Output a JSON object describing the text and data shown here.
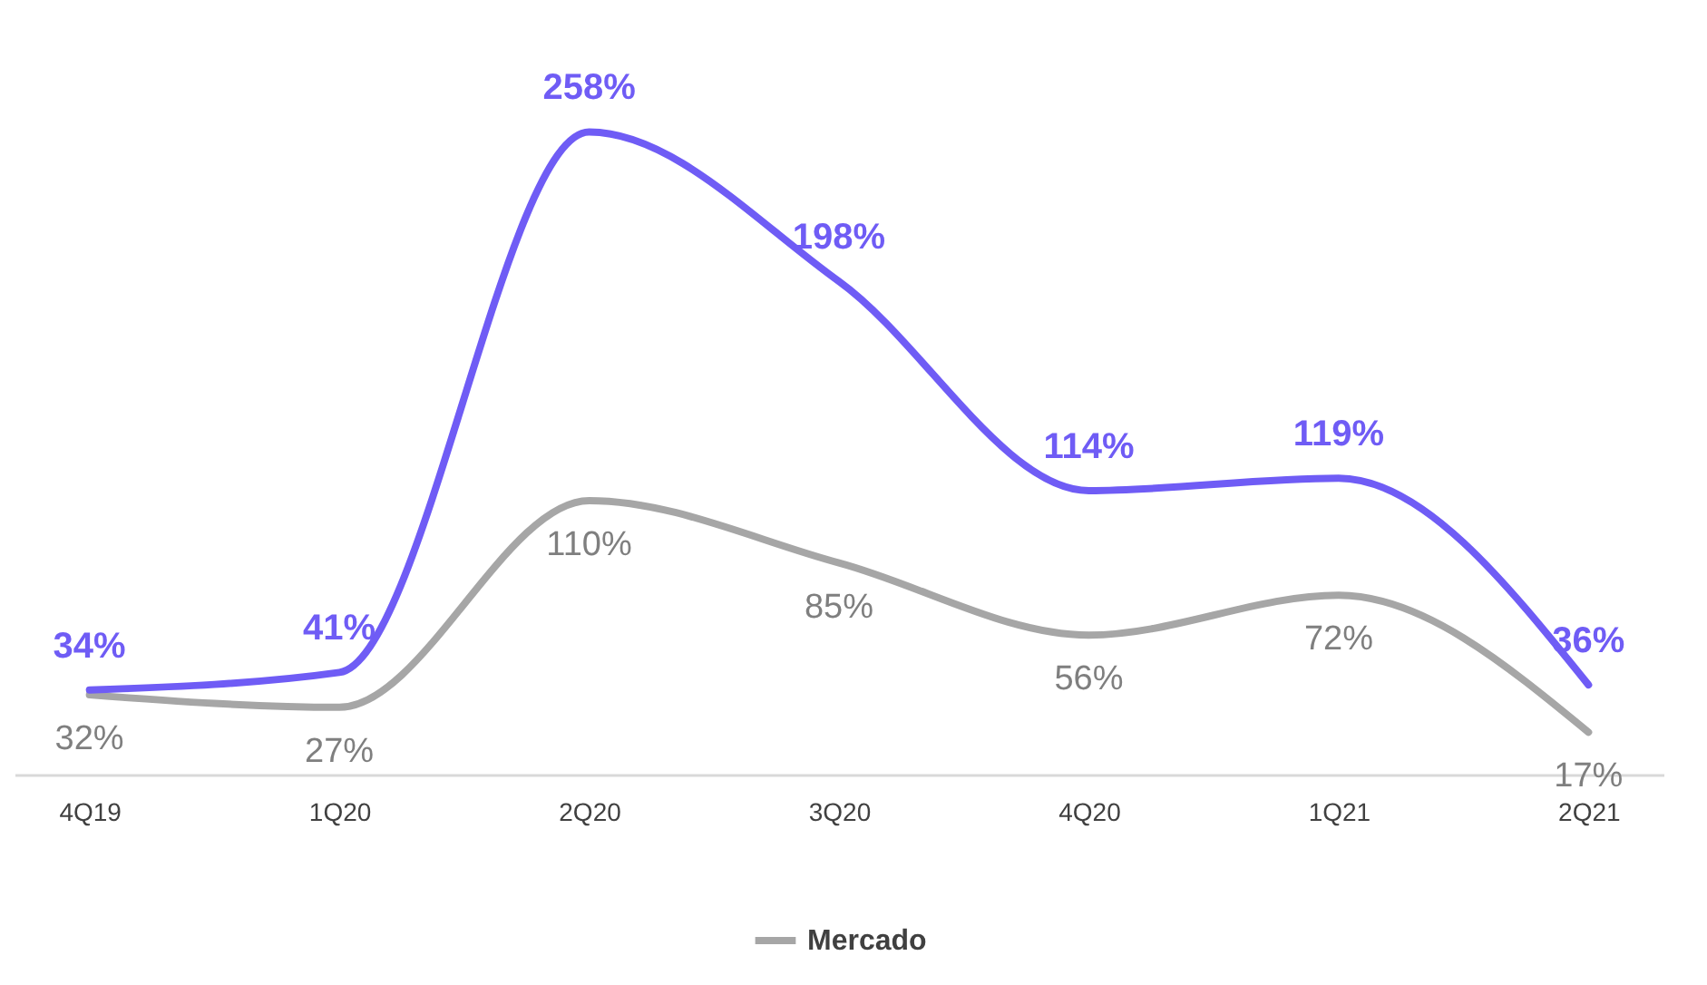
{
  "chart_data": {
    "type": "line",
    "categories": [
      "4Q19",
      "1Q20",
      "2Q20",
      "3Q20",
      "4Q20",
      "1Q21",
      "2Q21"
    ],
    "series": [
      {
        "name": "Mercado",
        "color": "#a6a6a6",
        "values": [
          32,
          27,
          110,
          85,
          56,
          72,
          17
        ],
        "value_labels": [
          "32%",
          "27%",
          "110%",
          "85%",
          "56%",
          "72%",
          "17%"
        ]
      },
      {
        "color": "#6f5cf5",
        "values": [
          34,
          41,
          258,
          198,
          114,
          119,
          36
        ],
        "value_labels": [
          "34%",
          "41%",
          "258%",
          "198%",
          "114%",
          "119%",
          "36%"
        ]
      }
    ],
    "legend": "bottom",
    "grid": false,
    "marker": "none",
    "line_style": "solid"
  }
}
